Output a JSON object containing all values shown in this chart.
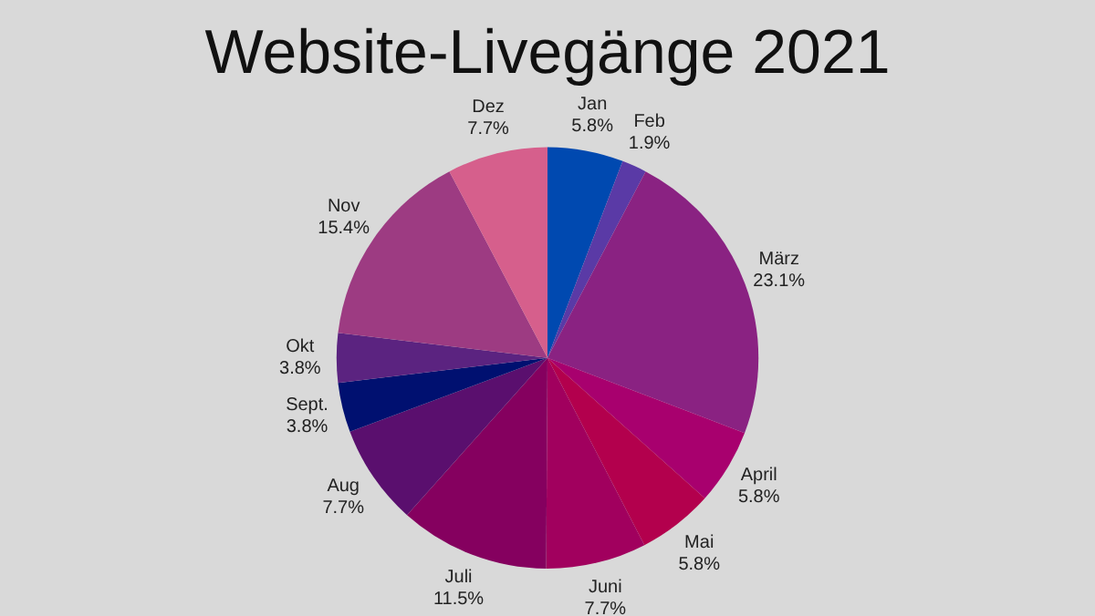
{
  "chart_data": {
    "type": "pie",
    "title": "Website-Livegänge 2021",
    "categories": [
      "Jan",
      "Feb",
      "März",
      "April",
      "Mai",
      "Juni",
      "Juli",
      "Aug",
      "Sept.",
      "Okt",
      "Nov",
      "Dez"
    ],
    "values": [
      5.8,
      1.9,
      23.1,
      5.8,
      5.8,
      7.7,
      11.5,
      7.7,
      3.8,
      3.8,
      15.4,
      7.7
    ],
    "colors": [
      "#0049b0",
      "#5a3aa6",
      "#8a2282",
      "#a8006e",
      "#b3004d",
      "#a1005e",
      "#85005f",
      "#5a0f6e",
      "#001070",
      "#5b2380",
      "#9d3b82",
      "#d65f8c"
    ],
    "value_labels": [
      "5.8%",
      "1.9%",
      "23.1%",
      "5.8%",
      "5.8%",
      "7.7%",
      "11.5%",
      "7.7%",
      "3.8%",
      "3.8%",
      "15.4%",
      "7.7%"
    ],
    "legend": false
  }
}
